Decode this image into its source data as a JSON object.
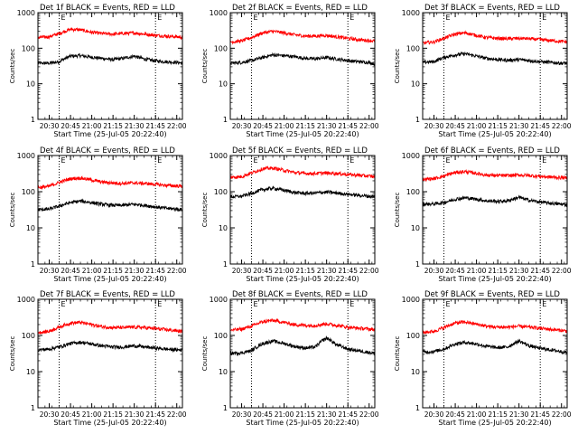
{
  "figure": {
    "shared": {
      "xlabel": "Start Time (25-Jul-05 20:22:40)",
      "ylabel": "Counts/sec",
      "x_ticks": [
        "20:30",
        "20:45",
        "21:00",
        "21:15",
        "21:30",
        "21:45",
        "22:00"
      ],
      "y_ticks": [
        "1",
        "10",
        "100",
        "1000"
      ],
      "marker_label": "E",
      "colors": {
        "events": "#000000",
        "lld": "#ff0000"
      }
    }
  },
  "chart_data": [
    {
      "type": "line",
      "title": "Det 1f BLACK = Events, RED = LLD",
      "xlabel": "Start Time (25-Jul-05 20:22:40)",
      "ylabel": "Counts/sec",
      "xlim": [
        "20:22",
        "22:04"
      ],
      "ylim": [
        1,
        1000
      ],
      "yscale": "log",
      "markers": [
        "20:37",
        "21:45"
      ],
      "series": [
        {
          "name": "Events",
          "color": "#000000",
          "x": [
            "20:22",
            "20:30",
            "20:37",
            "20:45",
            "20:52",
            "21:00",
            "21:07",
            "21:15",
            "21:22",
            "21:30",
            "21:37",
            "21:45",
            "21:52",
            "22:00",
            "22:04"
          ],
          "values": [
            38,
            38,
            42,
            60,
            62,
            56,
            52,
            48,
            52,
            60,
            50,
            44,
            42,
            40,
            38
          ]
        },
        {
          "name": "LLD",
          "color": "#ff0000",
          "x": [
            "20:22",
            "20:30",
            "20:37",
            "20:45",
            "20:52",
            "21:00",
            "21:07",
            "21:15",
            "21:22",
            "21:30",
            "21:37",
            "21:45",
            "21:52",
            "22:00",
            "22:04"
          ],
          "values": [
            200,
            210,
            260,
            340,
            330,
            280,
            260,
            250,
            260,
            270,
            250,
            230,
            220,
            210,
            200
          ]
        }
      ]
    },
    {
      "type": "line",
      "title": "Det 2f BLACK = Events, RED = LLD",
      "xlabel": "Start Time (25-Jul-05 20:22:40)",
      "ylabel": "Counts/sec",
      "xlim": [
        "20:22",
        "22:04"
      ],
      "ylim": [
        1,
        1000
      ],
      "yscale": "log",
      "markers": [
        "20:37",
        "21:45"
      ],
      "series": [
        {
          "name": "Events",
          "color": "#000000",
          "x": [
            "20:22",
            "20:30",
            "20:37",
            "20:45",
            "20:52",
            "21:00",
            "21:07",
            "21:15",
            "21:22",
            "21:30",
            "21:37",
            "21:45",
            "21:52",
            "22:00",
            "22:04"
          ],
          "values": [
            38,
            40,
            45,
            55,
            65,
            62,
            58,
            52,
            50,
            55,
            50,
            45,
            42,
            40,
            36
          ]
        },
        {
          "name": "LLD",
          "color": "#ff0000",
          "x": [
            "20:22",
            "20:30",
            "20:37",
            "20:45",
            "20:52",
            "21:00",
            "21:07",
            "21:15",
            "21:22",
            "21:30",
            "21:37",
            "21:45",
            "21:52",
            "22:00",
            "22:04"
          ],
          "values": [
            150,
            160,
            200,
            270,
            300,
            270,
            240,
            220,
            220,
            230,
            210,
            190,
            175,
            165,
            160
          ]
        }
      ]
    },
    {
      "type": "line",
      "title": "Det 3f BLACK = Events, RED = LLD",
      "xlabel": "Start Time (25-Jul-05 20:22:40)",
      "ylabel": "Counts/sec",
      "xlim": [
        "20:22",
        "22:04"
      ],
      "ylim": [
        1,
        1000
      ],
      "yscale": "log",
      "markers": [
        "20:37",
        "21:45"
      ],
      "series": [
        {
          "name": "Events",
          "color": "#000000",
          "x": [
            "20:22",
            "20:30",
            "20:37",
            "20:45",
            "20:52",
            "21:00",
            "21:07",
            "21:15",
            "21:22",
            "21:30",
            "21:37",
            "21:45",
            "21:52",
            "22:00",
            "22:04"
          ],
          "values": [
            40,
            42,
            55,
            65,
            70,
            60,
            52,
            48,
            46,
            48,
            45,
            42,
            40,
            38,
            38
          ]
        },
        {
          "name": "LLD",
          "color": "#ff0000",
          "x": [
            "20:22",
            "20:30",
            "20:37",
            "20:45",
            "20:52",
            "21:00",
            "21:07",
            "21:15",
            "21:22",
            "21:30",
            "21:37",
            "21:45",
            "21:52",
            "22:00",
            "22:04"
          ],
          "values": [
            140,
            150,
            190,
            250,
            270,
            230,
            200,
            190,
            185,
            190,
            185,
            175,
            165,
            155,
            150
          ]
        }
      ]
    },
    {
      "type": "line",
      "title": "Det 4f BLACK = Events, RED = LLD",
      "xlabel": "Start Time (25-Jul-05 20:22:40)",
      "ylabel": "Counts/sec",
      "xlim": [
        "20:22",
        "22:04"
      ],
      "ylim": [
        1,
        1000
      ],
      "yscale": "log",
      "markers": [
        "20:37",
        "21:45"
      ],
      "series": [
        {
          "name": "Events",
          "color": "#000000",
          "x": [
            "20:22",
            "20:30",
            "20:37",
            "20:45",
            "20:52",
            "21:00",
            "21:07",
            "21:15",
            "21:22",
            "21:30",
            "21:37",
            "21:45",
            "21:52",
            "22:00",
            "22:04"
          ],
          "values": [
            32,
            33,
            40,
            50,
            55,
            50,
            45,
            42,
            42,
            45,
            42,
            38,
            35,
            33,
            32
          ]
        },
        {
          "name": "LLD",
          "color": "#ff0000",
          "x": [
            "20:22",
            "20:30",
            "20:37",
            "20:45",
            "20:52",
            "21:00",
            "21:07",
            "21:15",
            "21:22",
            "21:30",
            "21:37",
            "21:45",
            "21:52",
            "22:00",
            "22:04"
          ],
          "values": [
            130,
            140,
            180,
            230,
            240,
            210,
            185,
            175,
            170,
            175,
            170,
            160,
            150,
            145,
            140
          ]
        }
      ]
    },
    {
      "type": "line",
      "title": "Det 5f BLACK = Events, RED = LLD",
      "xlabel": "Start Time (25-Jul-05 20:22:40)",
      "ylabel": "Counts/sec",
      "xlim": [
        "20:22",
        "22:04"
      ],
      "ylim": [
        1,
        1000
      ],
      "yscale": "log",
      "markers": [
        "20:37",
        "21:45"
      ],
      "series": [
        {
          "name": "Events",
          "color": "#000000",
          "x": [
            "20:22",
            "20:30",
            "20:37",
            "20:45",
            "20:52",
            "21:00",
            "21:07",
            "21:15",
            "21:22",
            "21:30",
            "21:37",
            "21:45",
            "21:52",
            "22:00",
            "22:04"
          ],
          "values": [
            72,
            75,
            90,
            115,
            125,
            110,
            95,
            90,
            92,
            98,
            92,
            85,
            80,
            75,
            72
          ]
        },
        {
          "name": "LLD",
          "color": "#ff0000",
          "x": [
            "20:22",
            "20:30",
            "20:37",
            "20:45",
            "20:52",
            "21:00",
            "21:07",
            "21:15",
            "21:22",
            "21:30",
            "21:37",
            "21:45",
            "21:52",
            "22:00",
            "22:04"
          ],
          "values": [
            250,
            260,
            330,
            430,
            450,
            390,
            340,
            320,
            320,
            330,
            320,
            300,
            285,
            270,
            260
          ]
        }
      ]
    },
    {
      "type": "line",
      "title": "Det 6f BLACK = Events, RED = LLD",
      "xlabel": "Start Time (25-Jul-05 20:22:40)",
      "ylabel": "Counts/sec",
      "xlim": [
        "20:22",
        "22:04"
      ],
      "ylim": [
        1,
        1000
      ],
      "yscale": "log",
      "markers": [
        "20:37",
        "21:45"
      ],
      "series": [
        {
          "name": "Events",
          "color": "#000000",
          "x": [
            "20:22",
            "20:30",
            "20:37",
            "20:45",
            "20:52",
            "21:00",
            "21:07",
            "21:15",
            "21:22",
            "21:30",
            "21:37",
            "21:45",
            "21:52",
            "22:00",
            "22:04"
          ],
          "values": [
            45,
            46,
            50,
            62,
            68,
            62,
            56,
            54,
            56,
            70,
            58,
            52,
            48,
            45,
            44
          ]
        },
        {
          "name": "LLD",
          "color": "#ff0000",
          "x": [
            "20:22",
            "20:30",
            "20:37",
            "20:45",
            "20:52",
            "21:00",
            "21:07",
            "21:15",
            "21:22",
            "21:30",
            "21:37",
            "21:45",
            "21:52",
            "22:00",
            "22:04"
          ],
          "values": [
            220,
            230,
            270,
            340,
            360,
            320,
            290,
            280,
            280,
            290,
            280,
            265,
            255,
            245,
            240
          ]
        }
      ]
    },
    {
      "type": "line",
      "title": "Det 7f BLACK = Events, RED = LLD",
      "xlabel": "Start Time (25-Jul-05 20:22:40)",
      "ylabel": "Counts/sec",
      "xlim": [
        "20:22",
        "22:04"
      ],
      "ylim": [
        1,
        1000
      ],
      "yscale": "log",
      "markers": [
        "20:37",
        "21:45"
      ],
      "series": [
        {
          "name": "Events",
          "color": "#000000",
          "x": [
            "20:22",
            "20:30",
            "20:37",
            "20:45",
            "20:52",
            "21:00",
            "21:07",
            "21:15",
            "21:22",
            "21:30",
            "21:37",
            "21:45",
            "21:52",
            "22:00",
            "22:04"
          ],
          "values": [
            40,
            42,
            48,
            60,
            65,
            58,
            52,
            48,
            48,
            52,
            48,
            45,
            42,
            40,
            40
          ]
        },
        {
          "name": "LLD",
          "color": "#ff0000",
          "x": [
            "20:22",
            "20:30",
            "20:37",
            "20:45",
            "20:52",
            "21:00",
            "21:07",
            "21:15",
            "21:22",
            "21:30",
            "21:37",
            "21:45",
            "21:52",
            "22:00",
            "22:04"
          ],
          "values": [
            120,
            130,
            170,
            220,
            230,
            200,
            175,
            165,
            165,
            170,
            165,
            155,
            145,
            135,
            130
          ]
        }
      ]
    },
    {
      "type": "line",
      "title": "Det 8f BLACK = Events, RED = LLD",
      "xlabel": "Start Time (25-Jul-05 20:22:40)",
      "ylabel": "Counts/sec",
      "xlim": [
        "20:22",
        "22:04"
      ],
      "ylim": [
        1,
        1000
      ],
      "yscale": "log",
      "markers": [
        "20:37",
        "21:45"
      ],
      "series": [
        {
          "name": "Events",
          "color": "#000000",
          "x": [
            "20:22",
            "20:30",
            "20:37",
            "20:45",
            "20:52",
            "21:00",
            "21:07",
            "21:15",
            "21:22",
            "21:30",
            "21:37",
            "21:45",
            "21:52",
            "22:00",
            "22:04"
          ],
          "values": [
            32,
            33,
            38,
            60,
            70,
            60,
            50,
            45,
            48,
            85,
            55,
            42,
            38,
            34,
            32
          ]
        },
        {
          "name": "LLD",
          "color": "#ff0000",
          "x": [
            "20:22",
            "20:30",
            "20:37",
            "20:45",
            "20:52",
            "21:00",
            "21:07",
            "21:15",
            "21:22",
            "21:30",
            "21:37",
            "21:45",
            "21:52",
            "22:00",
            "22:04"
          ],
          "values": [
            140,
            150,
            180,
            240,
            260,
            230,
            200,
            190,
            190,
            210,
            190,
            170,
            160,
            150,
            145
          ]
        }
      ]
    },
    {
      "type": "line",
      "title": "Det 9f BLACK = Events, RED = LLD",
      "xlabel": "Start Time (25-Jul-05 20:22:40)",
      "ylabel": "Counts/sec",
      "xlim": [
        "20:22",
        "22:04"
      ],
      "ylim": [
        1,
        1000
      ],
      "yscale": "log",
      "markers": [
        "20:37",
        "21:45"
      ],
      "series": [
        {
          "name": "Events",
          "color": "#000000",
          "x": [
            "20:22",
            "20:30",
            "20:37",
            "20:45",
            "20:52",
            "21:00",
            "21:07",
            "21:15",
            "21:22",
            "21:30",
            "21:37",
            "21:45",
            "21:52",
            "22:00",
            "22:04"
          ],
          "values": [
            35,
            36,
            42,
            58,
            65,
            58,
            50,
            46,
            48,
            70,
            52,
            44,
            40,
            36,
            34
          ]
        },
        {
          "name": "LLD",
          "color": "#ff0000",
          "x": [
            "20:22",
            "20:30",
            "20:37",
            "20:45",
            "20:52",
            "21:00",
            "21:07",
            "21:15",
            "21:22",
            "21:30",
            "21:37",
            "21:45",
            "21:52",
            "22:00",
            "22:04"
          ],
          "values": [
            120,
            130,
            165,
            220,
            235,
            205,
            180,
            170,
            170,
            180,
            170,
            158,
            148,
            138,
            132
          ]
        }
      ]
    }
  ]
}
